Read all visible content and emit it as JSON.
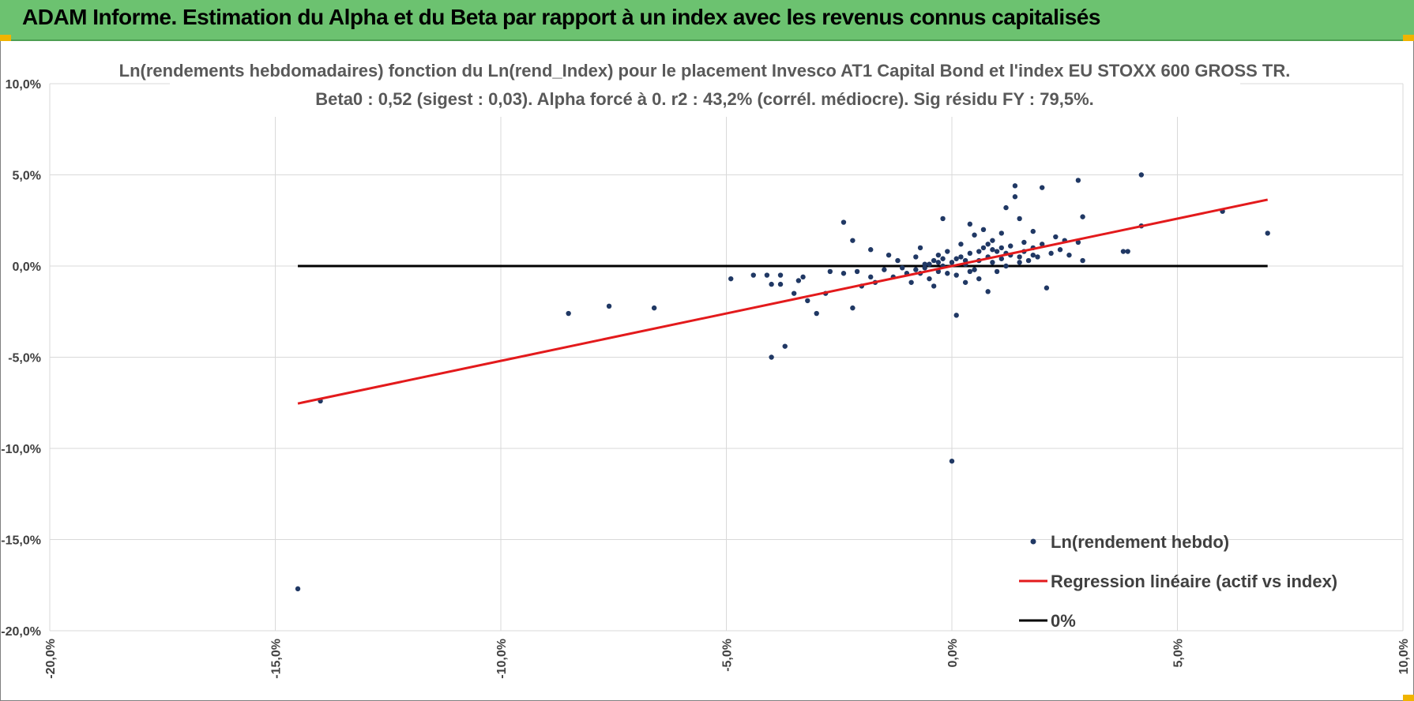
{
  "header": {
    "title": "ADAM Informe. Estimation du Alpha et du Beta par rapport à un index avec les revenus connus capitalisés"
  },
  "colors": {
    "header_bg": "#6cc270",
    "points": "#203864",
    "regression": "#e31a1c",
    "zero_line": "#000000",
    "grid": "#d9d9d9"
  },
  "chart_data": {
    "type": "scatter",
    "title": "Ln(rendements hebdomadaires) fonction du Ln(rend_Index) pour le placement Invesco AT1 Capital Bond  et l'index EU STOXX 600 GROSS TR.",
    "subtitle": "Beta0 : 0,52 (sigest : 0,03).  Alpha forcé à 0. r2 : 43,2% (corrél. médiocre). Sig résidu FY : 79,5%.",
    "xlabel": "",
    "ylabel": "",
    "xlim": [
      -20,
      10
    ],
    "ylim": [
      -20,
      10
    ],
    "grid": true,
    "x_ticks": [
      -20,
      -15,
      -10,
      -5,
      0,
      5,
      10
    ],
    "y_ticks": [
      -20,
      -15,
      -10,
      -5,
      0,
      5,
      10
    ],
    "x_tick_labels": [
      "-20,0%",
      "-15,0%",
      "-10,0%",
      "-5,0%",
      "0,0%",
      "5,0%",
      "10,0%"
    ],
    "y_tick_labels": [
      "-20,0%",
      "-15,0%",
      "-10,0%",
      "-5,0%",
      "0,0%",
      "5,0%",
      "10,0%"
    ],
    "legend_position": "bottom-right",
    "series": [
      {
        "name": "Ln(rendement hebdo)",
        "kind": "scatter",
        "points": [
          [
            -14.5,
            -17.7
          ],
          [
            -14.0,
            -7.4
          ],
          [
            -8.5,
            -2.6
          ],
          [
            -7.6,
            -2.2
          ],
          [
            -6.6,
            -2.3
          ],
          [
            -4.9,
            -0.7
          ],
          [
            -4.4,
            -0.5
          ],
          [
            -4.1,
            -0.5
          ],
          [
            -4.0,
            -1.0
          ],
          [
            -4.0,
            -5.0
          ],
          [
            -3.8,
            -0.5
          ],
          [
            -3.8,
            -1.0
          ],
          [
            -3.7,
            -4.4
          ],
          [
            -3.5,
            -1.5
          ],
          [
            -3.4,
            -0.8
          ],
          [
            -3.3,
            -0.6
          ],
          [
            -3.2,
            -1.9
          ],
          [
            -3.0,
            -2.6
          ],
          [
            -2.8,
            -1.5
          ],
          [
            -2.7,
            -0.3
          ],
          [
            -2.4,
            2.4
          ],
          [
            -2.4,
            -0.4
          ],
          [
            -2.2,
            1.4
          ],
          [
            -2.2,
            -2.3
          ],
          [
            -2.1,
            -0.3
          ],
          [
            -2.0,
            -1.1
          ],
          [
            -1.8,
            0.9
          ],
          [
            -1.8,
            -0.6
          ],
          [
            -1.7,
            -0.9
          ],
          [
            -1.5,
            -0.2
          ],
          [
            -1.4,
            0.6
          ],
          [
            -1.3,
            -0.6
          ],
          [
            -1.2,
            0.3
          ],
          [
            -1.1,
            -0.1
          ],
          [
            -1.0,
            -0.4
          ],
          [
            -0.9,
            -0.9
          ],
          [
            -0.8,
            0.5
          ],
          [
            -0.8,
            -0.2
          ],
          [
            -0.7,
            1.0
          ],
          [
            -0.7,
            -0.4
          ],
          [
            -0.6,
            0.1
          ],
          [
            -0.5,
            -0.7
          ],
          [
            -0.4,
            0.3
          ],
          [
            -0.4,
            -1.1
          ],
          [
            -0.3,
            0.6
          ],
          [
            -0.3,
            -0.3
          ],
          [
            -0.2,
            2.6
          ],
          [
            -0.2,
            0.0
          ],
          [
            -0.1,
            -0.4
          ],
          [
            -0.1,
            0.8
          ],
          [
            0.0,
            0.2
          ],
          [
            0.0,
            -10.7
          ],
          [
            0.1,
            -2.7
          ],
          [
            0.1,
            -0.5
          ],
          [
            0.2,
            0.5
          ],
          [
            0.2,
            1.2
          ],
          [
            0.3,
            -0.9
          ],
          [
            0.3,
            0.1
          ],
          [
            0.4,
            2.3
          ],
          [
            0.4,
            0.7
          ],
          [
            0.5,
            -0.2
          ],
          [
            0.5,
            1.7
          ],
          [
            0.6,
            0.3
          ],
          [
            0.6,
            -0.7
          ],
          [
            0.7,
            1.0
          ],
          [
            0.7,
            2.0
          ],
          [
            0.8,
            0.5
          ],
          [
            0.8,
            -1.4
          ],
          [
            0.9,
            0.2
          ],
          [
            0.9,
            1.4
          ],
          [
            1.0,
            0.8
          ],
          [
            1.0,
            -0.3
          ],
          [
            1.1,
            1.8
          ],
          [
            1.1,
            0.4
          ],
          [
            1.2,
            0.0
          ],
          [
            1.2,
            3.2
          ],
          [
            1.3,
            1.1
          ],
          [
            1.3,
            0.6
          ],
          [
            1.4,
            4.4
          ],
          [
            1.4,
            3.8
          ],
          [
            1.5,
            0.2
          ],
          [
            1.5,
            2.6
          ],
          [
            1.6,
            1.3
          ],
          [
            1.6,
            0.8
          ],
          [
            1.7,
            0.3
          ],
          [
            1.8,
            1.0
          ],
          [
            1.8,
            1.9
          ],
          [
            1.9,
            0.5
          ],
          [
            2.0,
            4.3
          ],
          [
            2.0,
            1.2
          ],
          [
            2.1,
            -1.2
          ],
          [
            2.2,
            0.7
          ],
          [
            2.3,
            1.6
          ],
          [
            2.4,
            0.9
          ],
          [
            2.5,
            1.4
          ],
          [
            2.6,
            0.6
          ],
          [
            2.8,
            1.3
          ],
          [
            2.8,
            4.7
          ],
          [
            2.9,
            2.7
          ],
          [
            2.9,
            0.3
          ],
          [
            3.8,
            0.8
          ],
          [
            3.9,
            0.8
          ],
          [
            4.2,
            5.0
          ],
          [
            4.2,
            2.2
          ],
          [
            6.0,
            3.0
          ],
          [
            7.0,
            1.8
          ],
          [
            -0.5,
            0.1
          ],
          [
            -0.3,
            0.2
          ],
          [
            0.1,
            0.4
          ],
          [
            0.3,
            0.3
          ],
          [
            0.6,
            0.8
          ],
          [
            0.9,
            0.9
          ],
          [
            1.2,
            0.7
          ],
          [
            1.5,
            0.5
          ],
          [
            1.8,
            0.6
          ],
          [
            0.4,
            -0.3
          ],
          [
            -0.2,
            0.4
          ],
          [
            0.8,
            1.2
          ],
          [
            1.1,
            1.0
          ],
          [
            -0.6,
            -0.1
          ]
        ]
      },
      {
        "name": "Regression linéaire (actif vs index)",
        "kind": "line",
        "x": [
          -14.5,
          7.0
        ],
        "y": [
          -7.54,
          3.64
        ]
      },
      {
        "name": "0%",
        "kind": "line",
        "x": [
          -14.5,
          7.0
        ],
        "y": [
          0,
          0
        ]
      }
    ]
  }
}
